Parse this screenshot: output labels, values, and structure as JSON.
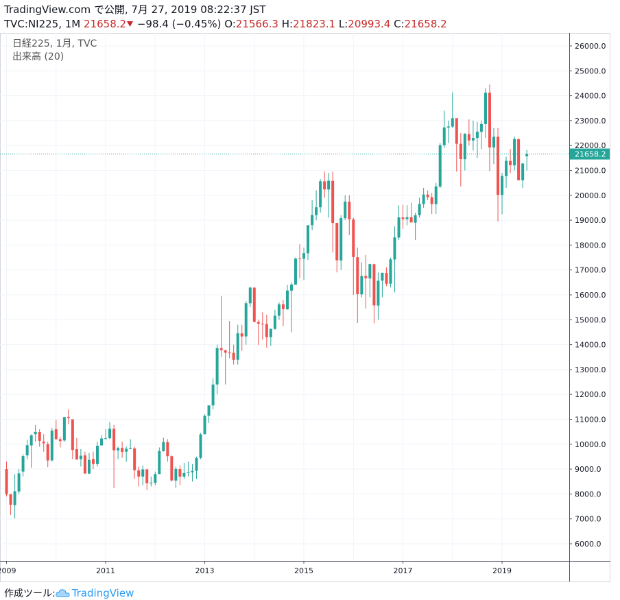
{
  "header": {
    "title": "TradingView.com で公開, 7月 27, 2019 08:22:37 JST",
    "symbol": "TVC:NI225, 1M",
    "change": "−98.4 (−0.45%)",
    "ohlc_labels": [
      "O:",
      "H:",
      "L:",
      "C:"
    ]
  },
  "footer": {
    "made_with": "作成ツール:",
    "brand": "TradingView"
  },
  "chart_data": {
    "type": "candlestick",
    "title": "日経225, 1月, TVC",
    "subtitle": "出来高 (20)",
    "up_color": "#26a69a",
    "down_color": "#ef5350",
    "grid": true,
    "x": [
      2009,
      2009.083,
      2009.167,
      2009.25,
      2009.333,
      2009.417,
      2009.5,
      2009.583,
      2009.667,
      2009.75,
      2009.833,
      2009.917,
      2010,
      2010.083,
      2010.167,
      2010.25,
      2010.333,
      2010.417,
      2010.5,
      2010.583,
      2010.667,
      2010.75,
      2010.833,
      2010.917,
      2011,
      2011.083,
      2011.167,
      2011.25,
      2011.333,
      2011.417,
      2011.5,
      2011.583,
      2011.667,
      2011.75,
      2011.833,
      2011.917,
      2012,
      2012.083,
      2012.167,
      2012.25,
      2012.333,
      2012.417,
      2012.5,
      2012.583,
      2012.667,
      2012.75,
      2012.833,
      2012.917,
      2013,
      2013.083,
      2013.167,
      2013.25,
      2013.333,
      2013.417,
      2013.5,
      2013.583,
      2013.667,
      2013.75,
      2013.833,
      2013.917,
      2014,
      2014.083,
      2014.167,
      2014.25,
      2014.333,
      2014.417,
      2014.5,
      2014.583,
      2014.667,
      2014.75,
      2014.833,
      2014.917,
      2015,
      2015.083,
      2015.167,
      2015.25,
      2015.333,
      2015.417,
      2015.5,
      2015.583,
      2015.667,
      2015.75,
      2015.833,
      2015.917,
      2016,
      2016.083,
      2016.167,
      2016.25,
      2016.333,
      2016.417,
      2016.5,
      2016.583,
      2016.667,
      2016.75,
      2016.833,
      2016.917,
      2017,
      2017.083,
      2017.167,
      2017.25,
      2017.333,
      2017.417,
      2017.5,
      2017.583,
      2017.667,
      2017.75,
      2017.833,
      2017.917,
      2018,
      2018.083,
      2018.167,
      2018.25,
      2018.333,
      2018.417,
      2018.5,
      2018.583,
      2018.667,
      2018.75,
      2018.833,
      2018.917,
      2019,
      2019.083,
      2019.167,
      2019.25,
      2019.333,
      2019.417,
      2019.5
    ],
    "open": [
      9000,
      7990,
      7550,
      8100,
      8900,
      9550,
      9950,
      10400,
      10490,
      10100,
      10000,
      9350,
      10600,
      10200,
      10150,
      11100,
      11000,
      9800,
      9400,
      9550,
      8820,
      9400,
      9200,
      9950,
      10230,
      10240,
      10620,
      9750,
      9850,
      9700,
      9800,
      9830,
      8950,
      8700,
      8990,
      8430,
      8450,
      8800,
      9720,
      10080,
      9520,
      8540,
      9000,
      8700,
      8840,
      8870,
      8930,
      9450,
      10400,
      11140,
      11560,
      12400,
      13860,
      13770,
      13680,
      13670,
      13390,
      14450,
      14330,
      15660,
      16290,
      14910,
      14840,
      14830,
      14300,
      14630,
      15160,
      15620,
      15420,
      16170,
      16410,
      17460,
      17450,
      17670,
      18800,
      19200,
      19520,
      20560,
      20230,
      20580,
      18890,
      17380,
      19080,
      19740,
      19030,
      17510,
      16020,
      16760,
      16660,
      17230,
      15570,
      16570,
      16880,
      16450,
      17420,
      18300,
      19110,
      19040,
      19120,
      18900,
      19200,
      19650,
      20030,
      19920,
      19640,
      20350,
      22010,
      22720,
      22760,
      23100,
      22070,
      21450,
      22460,
      22200,
      22300,
      22550,
      22860,
      24120,
      21920,
      22350,
      20010,
      20770,
      21380,
      21200,
      22250,
      20600,
      21566.3
    ],
    "high": [
      9300,
      8000,
      8800,
      9000,
      9600,
      10170,
      10400,
      10770,
      10600,
      10400,
      10100,
      10650,
      10980,
      10300,
      11100,
      11400,
      11000,
      10250,
      9800,
      9700,
      9650,
      9700,
      10100,
      10370,
      10600,
      10890,
      10770,
      9900,
      10100,
      9900,
      10200,
      9900,
      9100,
      9150,
      9000,
      8700,
      8900,
      9870,
      10260,
      10200,
      9550,
      9100,
      9150,
      9250,
      9300,
      9200,
      9500,
      10450,
      11200,
      11500,
      12650,
      14000,
      15950,
      13800,
      14950,
      14000,
      14800,
      14800,
      15750,
      16320,
      16300,
      15000,
      15300,
      15200,
      14650,
      15400,
      15700,
      15800,
      16400,
      16500,
      17500,
      18030,
      17900,
      18800,
      19800,
      20200,
      20650,
      20950,
      20900,
      20950,
      18900,
      19200,
      20000,
      20000,
      19100,
      17900,
      17300,
      17600,
      17250,
      17250,
      16900,
      16800,
      17100,
      17500,
      18750,
      19600,
      19620,
      19600,
      19700,
      19300,
      19900,
      20300,
      20200,
      20100,
      20500,
      22100,
      23400,
      23000,
      24130,
      23100,
      22500,
      22500,
      23050,
      23000,
      22950,
      23000,
      24300,
      24450,
      22700,
      22700,
      20900,
      21550,
      21860,
      22360,
      22300,
      21300,
      21823.1
    ],
    "low": [
      7900,
      7160,
      7020,
      8000,
      8700,
      9400,
      9050,
      10100,
      9900,
      9700,
      9080,
      9300,
      10200,
      9870,
      10100,
      10800,
      9400,
      9500,
      9100,
      8800,
      8800,
      9000,
      9100,
      9950,
      10200,
      10200,
      8230,
      9400,
      9450,
      9300,
      9800,
      8600,
      8300,
      8350,
      8160,
      8300,
      8350,
      8800,
      9700,
      9300,
      8500,
      8240,
      8350,
      8600,
      8700,
      8500,
      8600,
      9400,
      10400,
      10850,
      11400,
      12000,
      13500,
      12400,
      13450,
      13200,
      13200,
      13750,
      14000,
      15500,
      14900,
      13990,
      14200,
      13880,
      13950,
      14600,
      15000,
      14750,
      15400,
      14500,
      16400,
      16670,
      16600,
      17400,
      18600,
      19000,
      19300,
      19900,
      19100,
      17700,
      16900,
      17000,
      19000,
      18400,
      16000,
      14870,
      15900,
      15450,
      15900,
      14860,
      15000,
      15900,
      16350,
      16300,
      16100,
      18200,
      18650,
      18800,
      19000,
      18200,
      19100,
      19500,
      19800,
      19250,
      19250,
      20300,
      21900,
      22100,
      22700,
      20950,
      20350,
      21000,
      22000,
      21800,
      21500,
      21850,
      22300,
      20970,
      21250,
      18950,
      19240,
      20300,
      20900,
      21000,
      20600,
      20290,
      20993.4
    ],
    "close": [
      7994,
      7568,
      8110,
      8828,
      9523,
      9958,
      10357,
      10493,
      10133,
      10034,
      9345,
      10546,
      10198,
      10126,
      11089,
      11057,
      9768,
      9382,
      9537,
      8824,
      9369,
      9202,
      9937,
      10228,
      10237,
      10624,
      9755,
      9849,
      9693,
      9816,
      9833,
      8955,
      8700,
      8988,
      8434,
      8455,
      8803,
      9723,
      10084,
      9520,
      8543,
      9007,
      8695,
      8840,
      8870,
      8928,
      9446,
      10395,
      11139,
      11559,
      12398,
      13861,
      13775,
      13677,
      13668,
      13389,
      14456,
      14328,
      15662,
      16291,
      14915,
      14841,
      14828,
      14304,
      14632,
      15162,
      15621,
      15425,
      16174,
      16414,
      17460,
      17451,
      17674,
      18798,
      19207,
      19520,
      20563,
      20236,
      20585,
      18890,
      17388,
      19083,
      19747,
      19034,
      17518,
      16027,
      16759,
      16666,
      17235,
      15576,
      16569,
      16887,
      16450,
      17425,
      18308,
      19114,
      19041,
      19119,
      18909,
      19197,
      19651,
      20033,
      19925,
      19646,
      20356,
      22012,
      22724,
      22765,
      23098,
      22068,
      21454,
      22468,
      22202,
      22305,
      22554,
      22865,
      24120,
      21920,
      22351,
      20015,
      20773,
      21385,
      21206,
      22259,
      20601,
      21276,
      21658.2
    ],
    "xlim": [
      2008.868,
      2020.356
    ],
    "xticks": [
      {
        "value": 2009,
        "label": "2009"
      },
      {
        "value": 2011,
        "label": "2011"
      },
      {
        "value": 2013,
        "label": "2013"
      },
      {
        "value": 2015,
        "label": "2015"
      },
      {
        "value": 2017,
        "label": "2017"
      },
      {
        "value": 2019,
        "label": "2019"
      }
    ],
    "xgrid": [
      2010,
      2012,
      2014,
      2016,
      2018
    ],
    "ylim": [
      5311,
      26523
    ],
    "yticks": [
      {
        "value": 6000,
        "label": "6000.0"
      },
      {
        "value": 7000,
        "label": "7000.0"
      },
      {
        "value": 8000,
        "label": "8000.0"
      },
      {
        "value": 9000,
        "label": "9000.0"
      },
      {
        "value": 10000,
        "label": "10000.0"
      },
      {
        "value": 11000,
        "label": "11000.0"
      },
      {
        "value": 12000,
        "label": "12000.0"
      },
      {
        "value": 13000,
        "label": "13000.0"
      },
      {
        "value": 14000,
        "label": "14000.0"
      },
      {
        "value": 15000,
        "label": "15000.0"
      },
      {
        "value": 16000,
        "label": "16000.0"
      },
      {
        "value": 17000,
        "label": "17000.0"
      },
      {
        "value": 18000,
        "label": "18000.0"
      },
      {
        "value": 19000,
        "label": "19000.0"
      },
      {
        "value": 20000,
        "label": "20000.0"
      },
      {
        "value": 21000,
        "label": "21000.0"
      },
      {
        "value": 22000,
        "label": "22000.0"
      },
      {
        "value": 23000,
        "label": "23000.0"
      },
      {
        "value": 24000,
        "label": "24000.0"
      },
      {
        "value": 25000,
        "label": "25000.0"
      },
      {
        "value": 26000,
        "label": "26000.0"
      }
    ]
  }
}
